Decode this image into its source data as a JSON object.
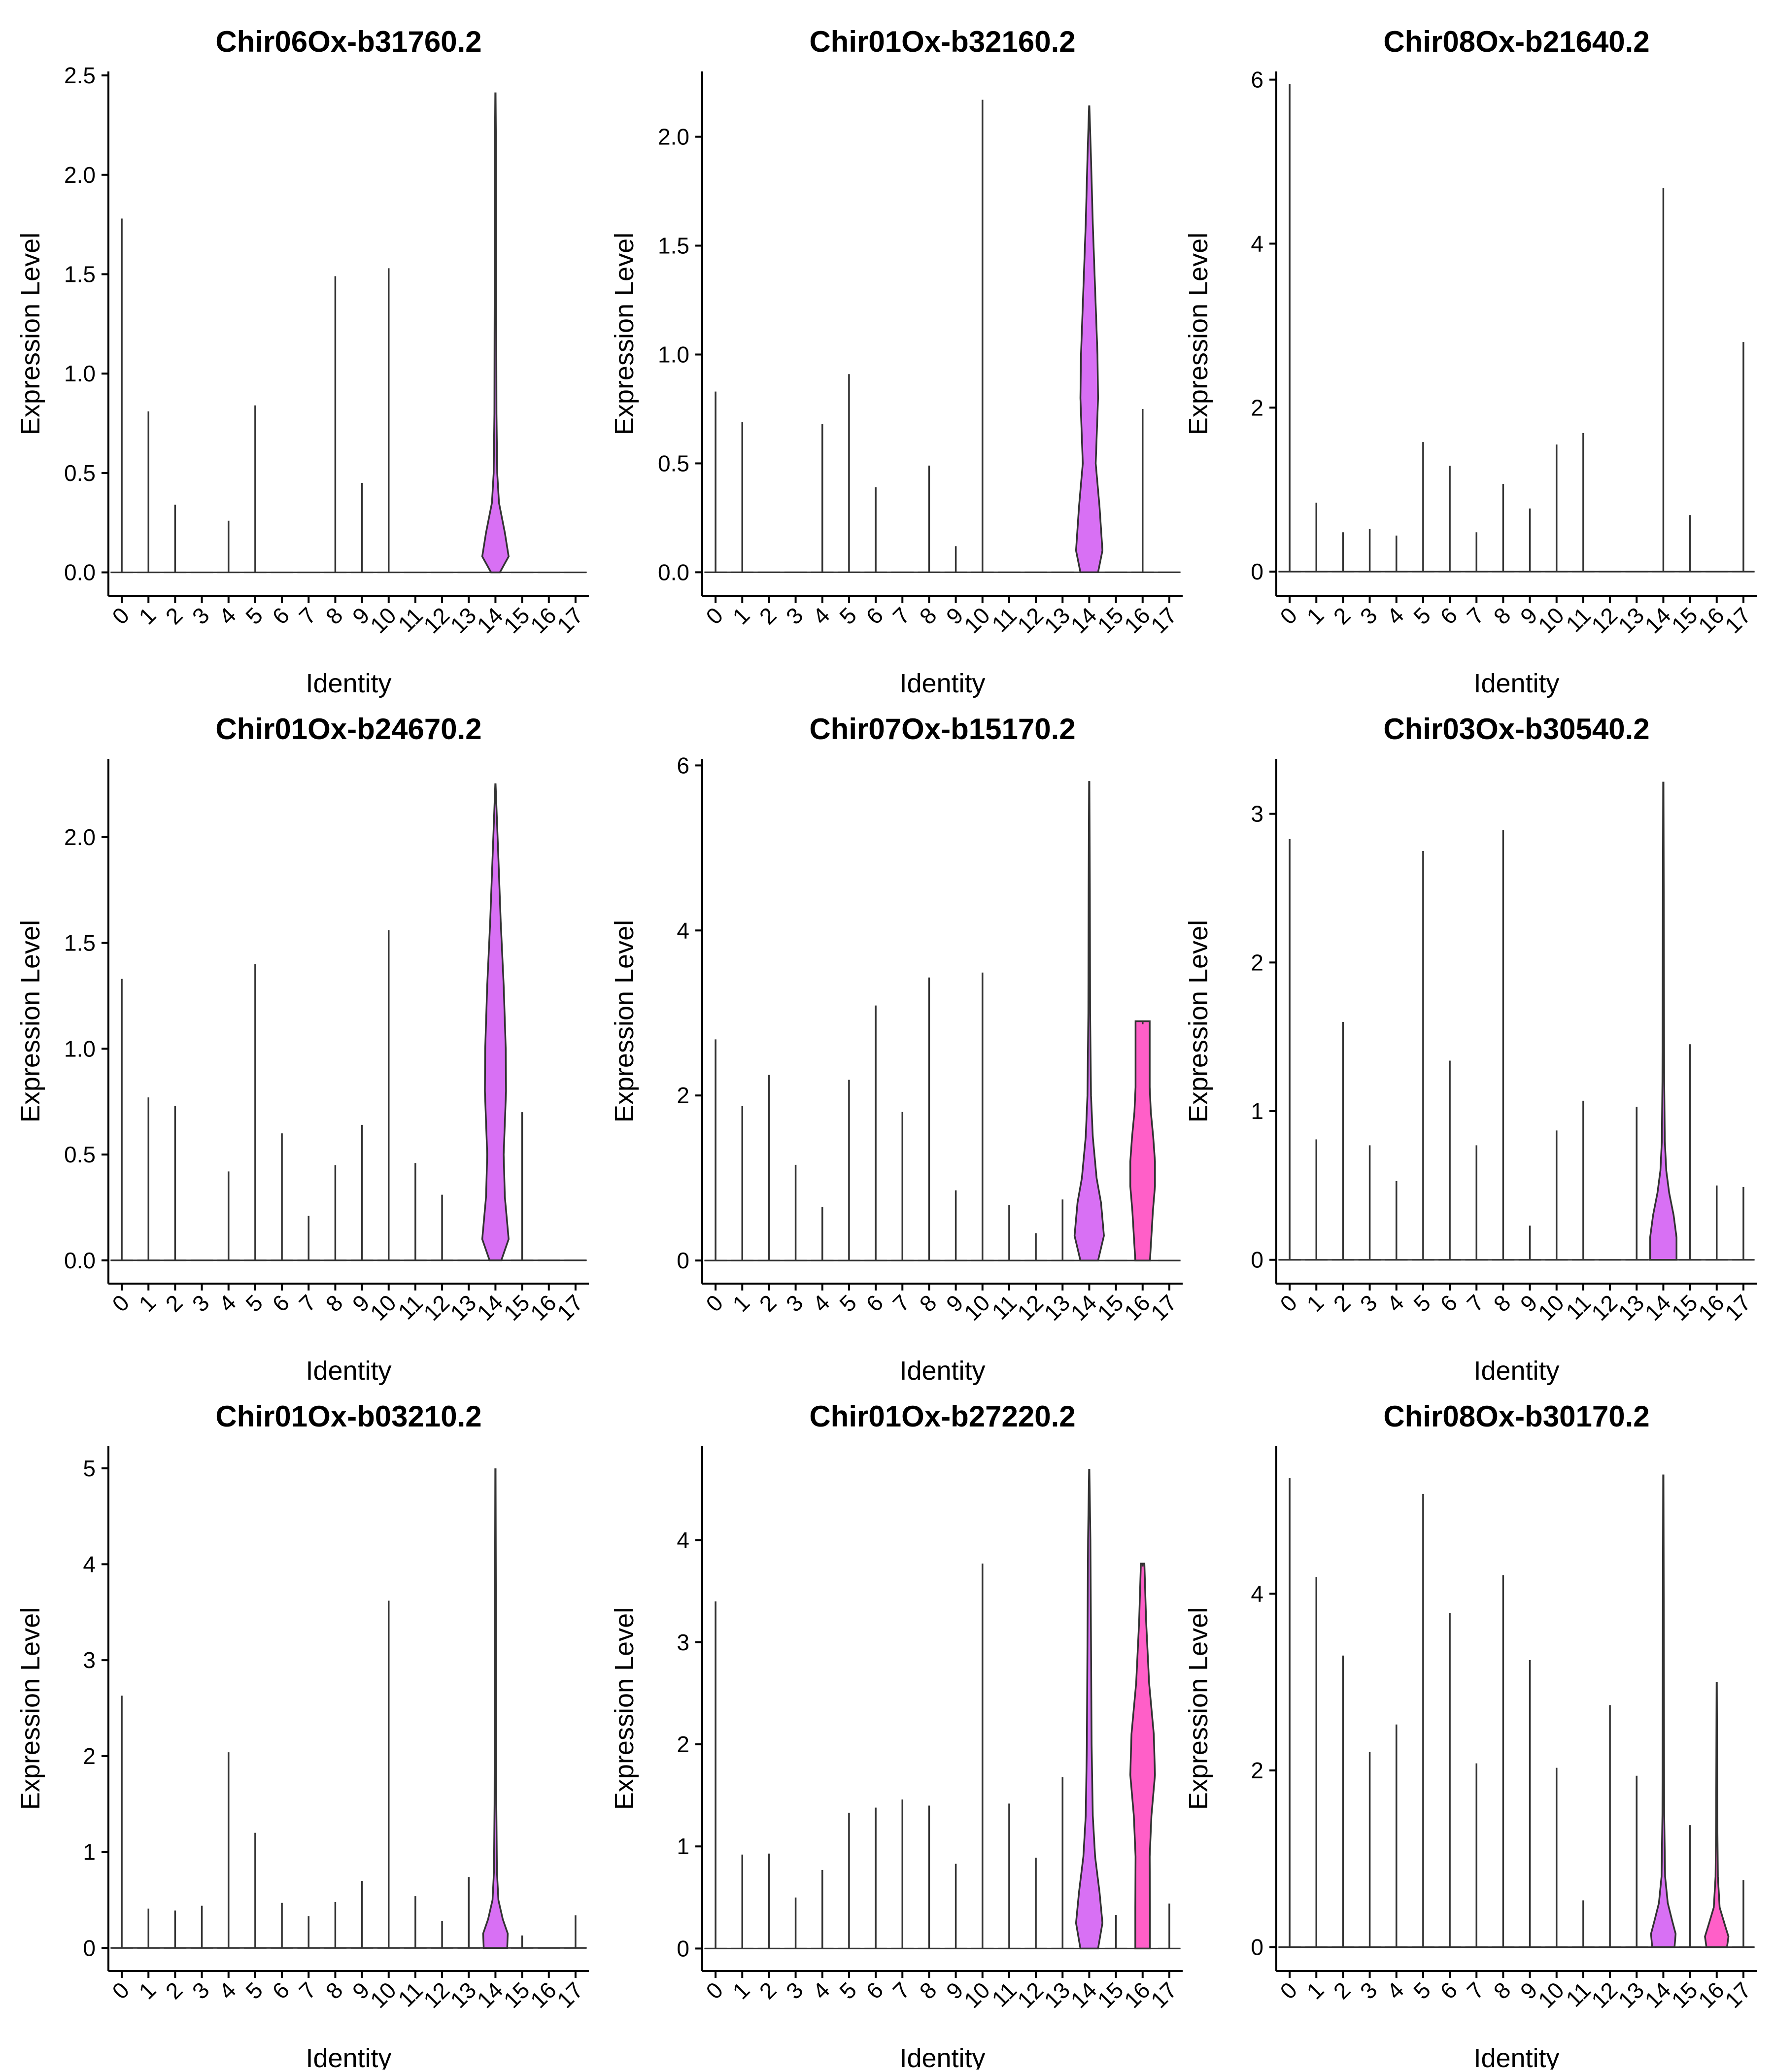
{
  "chart_data": [
    {
      "type": "violin",
      "title": "Chir06Ox-b31760.2",
      "xlabel": "Identity",
      "ylabel": "Expression Level",
      "categories": [
        "0",
        "1",
        "2",
        "3",
        "4",
        "5",
        "6",
        "7",
        "8",
        "9",
        "10",
        "11",
        "12",
        "13",
        "14",
        "15",
        "16",
        "17"
      ],
      "ylim": [
        -0.12,
        2.52
      ],
      "yticks": [
        0.0,
        0.5,
        1.0,
        1.5,
        2.0,
        2.5
      ],
      "ytick_labels": [
        "0.0",
        "0.5",
        "1.0",
        "1.5",
        "2.0",
        "2.5"
      ],
      "max_values": [
        1.78,
        0.81,
        0.34,
        0,
        0.26,
        0.84,
        0,
        0,
        1.49,
        0.45,
        1.53,
        0,
        0,
        0,
        2.41,
        0,
        0,
        0
      ],
      "filled_violins": [
        {
          "category": "14",
          "max": 2.41,
          "color": "#d870f4",
          "profile": [
            [
              0,
              0.15
            ],
            [
              0.08,
              0.45
            ],
            [
              0.2,
              0.32
            ],
            [
              0.35,
              0.12
            ],
            [
              0.5,
              0.06
            ],
            [
              0.8,
              0.035
            ],
            [
              1.2,
              0.03
            ],
            [
              1.8,
              0.02
            ],
            [
              2.2,
              0.015
            ],
            [
              2.41,
              0.005
            ]
          ]
        }
      ]
    },
    {
      "type": "violin",
      "title": "Chir01Ox-b32160.2",
      "xlabel": "Identity",
      "ylabel": "Expression Level",
      "categories": [
        "0",
        "1",
        "2",
        "3",
        "4",
        "5",
        "6",
        "7",
        "8",
        "9",
        "10",
        "11",
        "12",
        "13",
        "14",
        "15",
        "16",
        "17"
      ],
      "ylim": [
        -0.11,
        2.3
      ],
      "yticks": [
        0.0,
        0.5,
        1.0,
        1.5,
        2.0
      ],
      "ytick_labels": [
        "0.0",
        "0.5",
        "1.0",
        "1.5",
        "2.0"
      ],
      "max_values": [
        0.83,
        0.69,
        0,
        0,
        0.68,
        0.91,
        0.39,
        0,
        0.49,
        0.12,
        2.17,
        0,
        0,
        0,
        2.14,
        0,
        0.75,
        0
      ],
      "filled_violins": [
        {
          "category": "14",
          "max": 2.14,
          "color": "#d870f4",
          "profile": [
            [
              0,
              0.3
            ],
            [
              0.1,
              0.45
            ],
            [
              0.3,
              0.35
            ],
            [
              0.5,
              0.22
            ],
            [
              0.8,
              0.3
            ],
            [
              1.0,
              0.28
            ],
            [
              1.3,
              0.2
            ],
            [
              1.6,
              0.12
            ],
            [
              1.9,
              0.06
            ],
            [
              2.14,
              0.005
            ]
          ]
        }
      ]
    },
    {
      "type": "violin",
      "title": "Chir08Ox-b21640.2",
      "xlabel": "Identity",
      "ylabel": "Expression Level",
      "categories": [
        "0",
        "1",
        "2",
        "3",
        "4",
        "5",
        "6",
        "7",
        "8",
        "9",
        "10",
        "11",
        "12",
        "13",
        "14",
        "15",
        "16",
        "17"
      ],
      "ylim": [
        -0.3,
        6.1
      ],
      "yticks": [
        0,
        2,
        4,
        6
      ],
      "ytick_labels": [
        "0",
        "2",
        "4",
        "6"
      ],
      "max_values": [
        5.95,
        0.84,
        0.48,
        0.52,
        0.44,
        1.58,
        1.29,
        0.48,
        1.07,
        0.77,
        1.55,
        1.69,
        0,
        0,
        4.68,
        0.69,
        0,
        2.8
      ],
      "filled_violins": []
    },
    {
      "type": "violin",
      "title": "Chir01Ox-b24670.2",
      "xlabel": "Identity",
      "ylabel": "Expression Level",
      "categories": [
        "0",
        "1",
        "2",
        "3",
        "4",
        "5",
        "6",
        "7",
        "8",
        "9",
        "10",
        "11",
        "12",
        "13",
        "14",
        "15",
        "16",
        "17"
      ],
      "ylim": [
        -0.11,
        2.37
      ],
      "yticks": [
        0.0,
        0.5,
        1.0,
        1.5,
        2.0
      ],
      "ytick_labels": [
        "0.0",
        "0.5",
        "1.0",
        "1.5",
        "2.0"
      ],
      "max_values": [
        1.33,
        0.77,
        0.73,
        0,
        0.42,
        1.4,
        0.6,
        0.21,
        0.45,
        0.64,
        1.56,
        0.46,
        0.31,
        0,
        2.25,
        0.7,
        0,
        0
      ],
      "filled_violins": [
        {
          "category": "14",
          "max": 2.25,
          "color": "#d870f4",
          "profile": [
            [
              0,
              0.2
            ],
            [
              0.1,
              0.45
            ],
            [
              0.3,
              0.32
            ],
            [
              0.5,
              0.28
            ],
            [
              0.8,
              0.36
            ],
            [
              1.0,
              0.35
            ],
            [
              1.3,
              0.28
            ],
            [
              1.6,
              0.18
            ],
            [
              1.9,
              0.1
            ],
            [
              2.25,
              0.005
            ]
          ]
        }
      ]
    },
    {
      "type": "violin",
      "title": "Chir07Ox-b15170.2",
      "xlabel": "Identity",
      "ylabel": "Expression Level",
      "categories": [
        "0",
        "1",
        "2",
        "3",
        "4",
        "5",
        "6",
        "7",
        "8",
        "9",
        "10",
        "11",
        "12",
        "13",
        "14",
        "15",
        "16",
        "17"
      ],
      "ylim": [
        -0.28,
        6.08
      ],
      "yticks": [
        0,
        2,
        4,
        6
      ],
      "ytick_labels": [
        "0",
        "2",
        "4",
        "6"
      ],
      "max_values": [
        2.68,
        1.87,
        2.25,
        1.16,
        0.65,
        2.19,
        3.09,
        1.8,
        3.43,
        0.85,
        3.49,
        0.67,
        0.33,
        0.74,
        5.8,
        0,
        2.9,
        0
      ],
      "filled_violins": [
        {
          "category": "14",
          "max": 5.8,
          "color": "#d870f4",
          "profile": [
            [
              0,
              0.3
            ],
            [
              0.3,
              0.5
            ],
            [
              0.7,
              0.4
            ],
            [
              1.0,
              0.25
            ],
            [
              1.5,
              0.12
            ],
            [
              2.0,
              0.06
            ],
            [
              3.0,
              0.03
            ],
            [
              4.5,
              0.02
            ],
            [
              5.8,
              0.005
            ]
          ]
        },
        {
          "category": "16",
          "max": 2.9,
          "color": "#ff5fc8",
          "profile": [
            [
              0,
              0.25
            ],
            [
              0.3,
              0.3
            ],
            [
              0.6,
              0.35
            ],
            [
              0.9,
              0.42
            ],
            [
              1.2,
              0.42
            ],
            [
              1.5,
              0.36
            ],
            [
              1.8,
              0.28
            ],
            [
              2.1,
              0.24
            ],
            [
              2.5,
              0.24
            ],
            [
              2.9,
              0.24
            ]
          ]
        }
      ]
    },
    {
      "type": "violin",
      "title": "Chir03Ox-b30540.2",
      "xlabel": "Identity",
      "ylabel": "Expression Level",
      "categories": [
        "0",
        "1",
        "2",
        "3",
        "4",
        "5",
        "6",
        "7",
        "8",
        "9",
        "10",
        "11",
        "12",
        "13",
        "14",
        "15",
        "16",
        "17"
      ],
      "ylim": [
        -0.16,
        3.37
      ],
      "yticks": [
        0,
        1,
        2,
        3
      ],
      "ytick_labels": [
        "0",
        "1",
        "2",
        "3"
      ],
      "max_values": [
        2.83,
        0.81,
        1.6,
        0.77,
        0.53,
        2.75,
        1.34,
        0.77,
        2.89,
        0.23,
        0.87,
        1.07,
        0,
        1.03,
        3.21,
        1.45,
        0.5,
        0.49
      ],
      "filled_violins": [
        {
          "category": "14",
          "max": 3.21,
          "color": "#d870f4",
          "profile": [
            [
              0,
              0.45
            ],
            [
              0.15,
              0.45
            ],
            [
              0.3,
              0.35
            ],
            [
              0.45,
              0.2
            ],
            [
              0.6,
              0.1
            ],
            [
              0.8,
              0.05
            ],
            [
              1.2,
              0.03
            ],
            [
              2.0,
              0.02
            ],
            [
              3.21,
              0.005
            ]
          ]
        }
      ]
    },
    {
      "type": "violin",
      "title": "Chir01Ox-b03210.2",
      "xlabel": "Identity",
      "ylabel": "Expression Level",
      "categories": [
        "0",
        "1",
        "2",
        "3",
        "4",
        "5",
        "6",
        "7",
        "8",
        "9",
        "10",
        "11",
        "12",
        "13",
        "14",
        "15",
        "16",
        "17"
      ],
      "ylim": [
        -0.24,
        5.23
      ],
      "yticks": [
        0,
        1,
        2,
        3,
        4,
        5
      ],
      "ytick_labels": [
        "0",
        "1",
        "2",
        "3",
        "4",
        "5"
      ],
      "max_values": [
        2.63,
        0.41,
        0.39,
        0.44,
        2.04,
        1.2,
        0.47,
        0.33,
        0.48,
        0.7,
        3.62,
        0.54,
        0.28,
        0.74,
        4.99,
        0.13,
        0,
        0.34
      ],
      "filled_violins": [
        {
          "category": "14",
          "max": 4.99,
          "color": "#d870f4",
          "profile": [
            [
              0,
              0.4
            ],
            [
              0.15,
              0.42
            ],
            [
              0.3,
              0.25
            ],
            [
              0.5,
              0.1
            ],
            [
              0.8,
              0.05
            ],
            [
              1.5,
              0.03
            ],
            [
              3.0,
              0.02
            ],
            [
              4.99,
              0.005
            ]
          ]
        }
      ]
    },
    {
      "type": "violin",
      "title": "Chir01Ox-b27220.2",
      "xlabel": "Identity",
      "ylabel": "Expression Level",
      "categories": [
        "0",
        "1",
        "2",
        "3",
        "4",
        "5",
        "6",
        "7",
        "8",
        "9",
        "10",
        "11",
        "12",
        "13",
        "14",
        "15",
        "16",
        "17"
      ],
      "ylim": [
        -0.22,
        4.92
      ],
      "yticks": [
        0,
        1,
        2,
        3,
        4
      ],
      "ytick_labels": [
        "0",
        "1",
        "2",
        "3",
        "4"
      ],
      "max_values": [
        3.4,
        0.92,
        0.93,
        0.5,
        0.77,
        1.33,
        1.38,
        1.46,
        1.4,
        0.83,
        3.77,
        1.42,
        0.89,
        1.68,
        4.69,
        0.33,
        3.77,
        0.44
      ],
      "filled_violins": [
        {
          "category": "14",
          "max": 4.69,
          "color": "#d870f4",
          "profile": [
            [
              0,
              0.3
            ],
            [
              0.25,
              0.45
            ],
            [
              0.55,
              0.35
            ],
            [
              0.9,
              0.2
            ],
            [
              1.3,
              0.12
            ],
            [
              2.0,
              0.08
            ],
            [
              3.0,
              0.06
            ],
            [
              4.0,
              0.04
            ],
            [
              4.69,
              0.005
            ]
          ]
        },
        {
          "category": "16",
          "max": 3.77,
          "color": "#ff5fc8",
          "profile": [
            [
              0,
              0.25
            ],
            [
              0.4,
              0.25
            ],
            [
              0.9,
              0.24
            ],
            [
              1.3,
              0.3
            ],
            [
              1.7,
              0.42
            ],
            [
              2.1,
              0.38
            ],
            [
              2.6,
              0.22
            ],
            [
              3.2,
              0.12
            ],
            [
              3.77,
              0.06
            ]
          ]
        }
      ]
    },
    {
      "type": "violin",
      "title": "Chir08Ox-b30170.2",
      "xlabel": "Identity",
      "ylabel": "Expression Level",
      "categories": [
        "0",
        "1",
        "2",
        "3",
        "4",
        "5",
        "6",
        "7",
        "8",
        "9",
        "10",
        "11",
        "12",
        "13",
        "14",
        "15",
        "16",
        "17"
      ],
      "ylim": [
        -0.27,
        5.67
      ],
      "yticks": [
        0,
        2,
        4
      ],
      "ytick_labels": [
        "0",
        "2",
        "4"
      ],
      "max_values": [
        5.31,
        4.19,
        3.3,
        2.21,
        2.52,
        5.13,
        3.78,
        2.08,
        4.21,
        3.25,
        2.03,
        0.53,
        2.74,
        1.94,
        5.34,
        1.38,
        2.99,
        0.76
      ],
      "filled_violins": [
        {
          "category": "14",
          "max": 5.34,
          "color": "#d870f4",
          "profile": [
            [
              0,
              0.38
            ],
            [
              0.15,
              0.42
            ],
            [
              0.3,
              0.3
            ],
            [
              0.5,
              0.15
            ],
            [
              0.8,
              0.06
            ],
            [
              1.5,
              0.03
            ],
            [
              3.0,
              0.02
            ],
            [
              5.34,
              0.005
            ]
          ]
        },
        {
          "category": "16",
          "max": 2.99,
          "color": "#ff5fc8",
          "profile": [
            [
              0,
              0.35
            ],
            [
              0.12,
              0.4
            ],
            [
              0.25,
              0.28
            ],
            [
              0.45,
              0.1
            ],
            [
              0.8,
              0.04
            ],
            [
              1.5,
              0.02
            ],
            [
              2.99,
              0.005
            ]
          ]
        }
      ]
    }
  ]
}
